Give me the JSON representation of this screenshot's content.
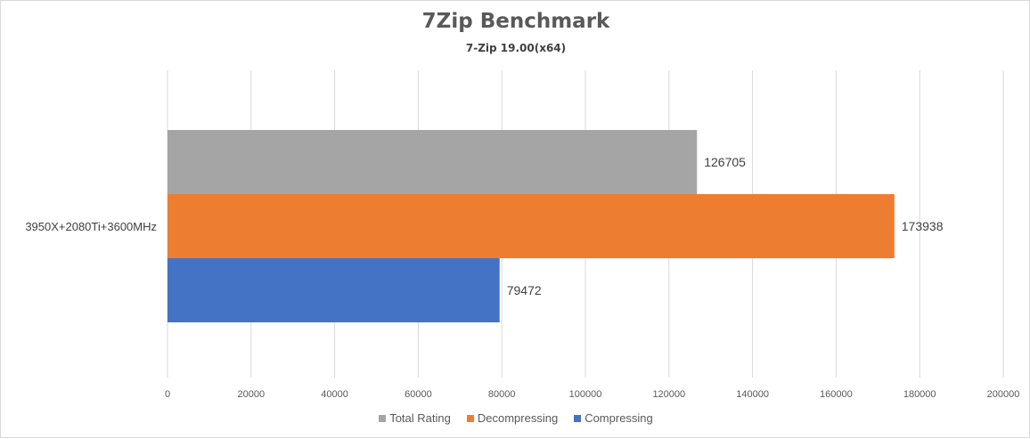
{
  "chart_data": {
    "type": "bar",
    "orientation": "horizontal",
    "title": "7Zip Benchmark",
    "subtitle": "7-Zip 19.00(x64)",
    "categories": [
      "3950X+2080Ti+3600MHz"
    ],
    "series": [
      {
        "name": "Total Rating",
        "values": [
          126705
        ],
        "color": "#a5a5a5"
      },
      {
        "name": "Decompressing",
        "values": [
          173938
        ],
        "color": "#ed7d31"
      },
      {
        "name": "Compressing",
        "values": [
          79472
        ],
        "color": "#4472c4"
      }
    ],
    "xlim": [
      0,
      200000
    ],
    "ticks": [
      "0",
      "20000",
      "40000",
      "60000",
      "80000",
      "100000",
      "120000",
      "140000",
      "160000",
      "180000",
      "200000"
    ],
    "grid": true,
    "legend_position": "bottom"
  }
}
